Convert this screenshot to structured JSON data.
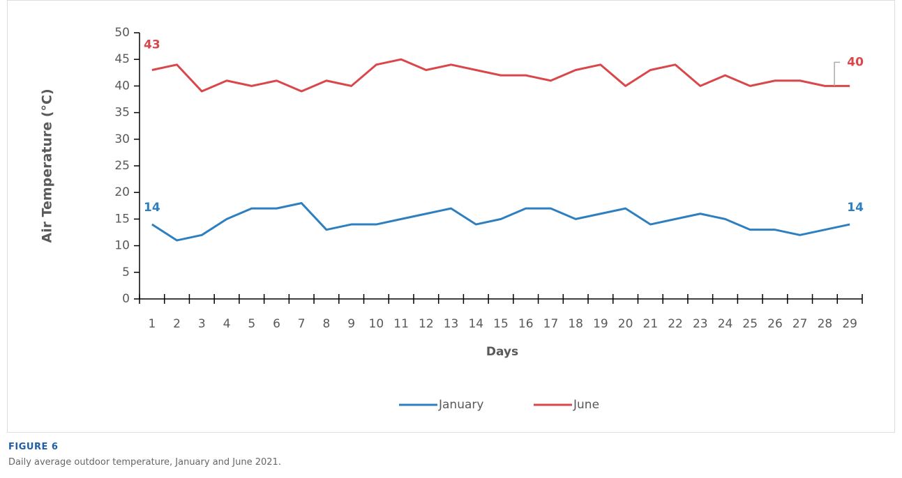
{
  "chart_data": {
    "type": "line",
    "y_label": "Air Temperature (°C)",
    "x_label": "Days",
    "figure_label": "FIGURE 6",
    "caption": "Daily average outdoor temperature, January and June 2021.",
    "categories": [
      "1",
      "2",
      "3",
      "4",
      "5",
      "6",
      "7",
      "8",
      "9",
      "10",
      "11",
      "12",
      "13",
      "14",
      "15",
      "16",
      "17",
      "18",
      "19",
      "20",
      "21",
      "22",
      "23",
      "24",
      "25",
      "26",
      "27",
      "28",
      "29"
    ],
    "series": [
      {
        "name": "January",
        "color": "#2e7fbf",
        "values": [
          14,
          11,
          12,
          15,
          17,
          17,
          18,
          13,
          14,
          14,
          15,
          16,
          17,
          14,
          15,
          17,
          17,
          15,
          16,
          17,
          14,
          15,
          16,
          15,
          13,
          13,
          12,
          13,
          14
        ],
        "value_labels": [
          "14",
          null,
          null,
          null,
          null,
          null,
          null,
          null,
          null,
          null,
          null,
          null,
          null,
          null,
          null,
          null,
          null,
          null,
          null,
          null,
          null,
          null,
          null,
          null,
          null,
          null,
          null,
          null,
          "14"
        ]
      },
      {
        "name": "June",
        "color": "#d9474b",
        "values": [
          43,
          44,
          39,
          41,
          40,
          41,
          39,
          41,
          40,
          44,
          45,
          43,
          44,
          43,
          42,
          42,
          41,
          43,
          44,
          40,
          43,
          44,
          40,
          42,
          40,
          41,
          41,
          40,
          40
        ],
        "value_labels": [
          "43",
          null,
          null,
          null,
          null,
          null,
          null,
          null,
          null,
          null,
          null,
          null,
          null,
          null,
          null,
          null,
          null,
          null,
          null,
          null,
          null,
          null,
          null,
          null,
          null,
          null,
          null,
          null,
          "40"
        ]
      }
    ],
    "ylim": [
      0,
      50
    ],
    "yticks": [
      0,
      5,
      10,
      15,
      20,
      25,
      30,
      35,
      40,
      45,
      50
    ],
    "grid": false,
    "legend": "bottom"
  }
}
